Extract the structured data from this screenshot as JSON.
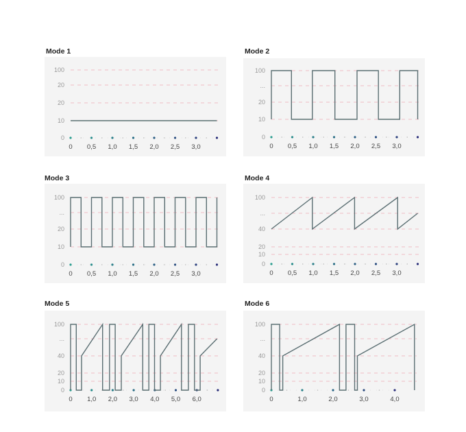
{
  "chart_data": [
    {
      "type": "line",
      "title": "Mode 1",
      "y_ticks": [
        "100",
        "20",
        "20",
        "10",
        "0"
      ],
      "x_ticks": [
        0,
        0.5,
        1.0,
        1.5,
        2.0,
        2.5,
        3.0
      ],
      "x_tick_labels": [
        "0",
        "0,5",
        "1,0",
        "1,5",
        "2,0",
        "2,5",
        "3,0"
      ],
      "marker_x": [
        0,
        0.5,
        1.0,
        1.5,
        2.0,
        2.5,
        3.0,
        3.5
      ],
      "xlim": [
        0,
        3.5
      ],
      "series": [
        {
          "points": [
            [
              0,
              "10"
            ],
            [
              3.5,
              "10"
            ]
          ]
        }
      ]
    },
    {
      "type": "line",
      "title": "Mode 2",
      "y_ticks": [
        "100",
        "...",
        "20",
        "10",
        "0"
      ],
      "x_ticks": [
        0,
        0.5,
        1.0,
        1.5,
        2.0,
        2.5,
        3.0
      ],
      "x_tick_labels": [
        "0",
        "0,5",
        "1,0",
        "1,5",
        "2,0",
        "2,5",
        "3,0"
      ],
      "marker_x": [
        0,
        0.5,
        1.0,
        1.5,
        2.0,
        2.5,
        3.0,
        3.5
      ],
      "xlim": [
        0,
        3.5
      ],
      "series": [
        {
          "points": [
            [
              0,
              "10"
            ],
            [
              0,
              "100"
            ],
            [
              0.48,
              "100"
            ],
            [
              0.48,
              "10"
            ],
            [
              0.98,
              "10"
            ],
            [
              0.98,
              "100"
            ],
            [
              1.52,
              "100"
            ],
            [
              1.52,
              "10"
            ],
            [
              2.05,
              "10"
            ],
            [
              2.05,
              "100"
            ],
            [
              2.56,
              "100"
            ],
            [
              2.56,
              "10"
            ],
            [
              3.07,
              "10"
            ],
            [
              3.07,
              "100"
            ],
            [
              3.5,
              "100"
            ],
            [
              3.5,
              "10"
            ]
          ]
        }
      ]
    },
    {
      "type": "line",
      "title": "Mode 3",
      "y_ticks": [
        "100",
        "...",
        "20",
        "10",
        "0"
      ],
      "x_ticks": [
        0,
        0.5,
        1.0,
        1.5,
        2.0,
        2.5,
        3.0
      ],
      "x_tick_labels": [
        "0",
        "0,5",
        "1,0",
        "1,5",
        "2,0",
        "2,5",
        "3,0"
      ],
      "marker_x": [
        0,
        0.5,
        1.0,
        1.5,
        2.0,
        2.5,
        3.0,
        3.5
      ],
      "xlim": [
        0,
        3.5
      ],
      "series": [
        {
          "points": [
            [
              0,
              "10"
            ],
            [
              0,
              "100"
            ],
            [
              0.25,
              "100"
            ],
            [
              0.25,
              "10"
            ],
            [
              0.5,
              "10"
            ],
            [
              0.5,
              "100"
            ],
            [
              0.75,
              "100"
            ],
            [
              0.75,
              "10"
            ],
            [
              1.0,
              "10"
            ],
            [
              1.0,
              "100"
            ],
            [
              1.25,
              "100"
            ],
            [
              1.25,
              "10"
            ],
            [
              1.5,
              "10"
            ],
            [
              1.5,
              "100"
            ],
            [
              1.75,
              "100"
            ],
            [
              1.75,
              "10"
            ],
            [
              2.0,
              "10"
            ],
            [
              2.0,
              "100"
            ],
            [
              2.25,
              "100"
            ],
            [
              2.25,
              "10"
            ],
            [
              2.5,
              "10"
            ],
            [
              2.5,
              "100"
            ],
            [
              2.75,
              "100"
            ],
            [
              2.75,
              "10"
            ],
            [
              3.0,
              "10"
            ],
            [
              3.0,
              "100"
            ],
            [
              3.25,
              "100"
            ],
            [
              3.25,
              "10"
            ],
            [
              3.5,
              "10"
            ],
            [
              3.5,
              "100"
            ]
          ]
        }
      ]
    },
    {
      "type": "line",
      "title": "Mode 4",
      "y_ticks": [
        "100",
        "...",
        "40",
        "20",
        "10",
        "0"
      ],
      "x_ticks": [
        0,
        0.5,
        1.0,
        1.5,
        2.0,
        2.5,
        3.0
      ],
      "x_tick_labels": [
        "0",
        "0,5",
        "1,0",
        "1,5",
        "2,0",
        "2,5",
        "3,0"
      ],
      "marker_x": [
        0,
        0.5,
        1.0,
        1.5,
        2.0,
        2.5,
        3.0,
        3.5
      ],
      "xlim": [
        0,
        3.5
      ],
      "series": [
        {
          "points": [
            [
              0,
              "40"
            ],
            [
              0.98,
              "100"
            ],
            [
              0.98,
              "40"
            ],
            [
              1.99,
              "100"
            ],
            [
              1.99,
              "40"
            ],
            [
              3.02,
              "100"
            ],
            [
              3.02,
              "40"
            ],
            [
              3.5,
              "..."
            ]
          ]
        }
      ]
    },
    {
      "type": "line",
      "title": "Mode 5",
      "y_ticks": [
        "100",
        "...",
        "40",
        "20",
        "10",
        "0"
      ],
      "x_ticks": [
        0,
        1.0,
        2.0,
        3.0,
        4.0,
        5.0,
        6.0
      ],
      "x_tick_labels": [
        "0",
        "1,0",
        "2,0",
        "3,0",
        "4,0",
        "5,0",
        "6,0"
      ],
      "marker_x": [
        0,
        1.0,
        2.0,
        3.0,
        4.0,
        5.0,
        6.0,
        7.0
      ],
      "xlim": [
        0,
        7.0
      ],
      "series": [
        {
          "points": [
            [
              0,
              "0"
            ],
            [
              0,
              "100"
            ],
            [
              0.27,
              "100"
            ],
            [
              0.27,
              "0"
            ],
            [
              0.52,
              "0"
            ],
            [
              0.52,
              "40"
            ],
            [
              1.52,
              "100"
            ],
            [
              1.52,
              "0"
            ],
            [
              1.85,
              "0"
            ],
            [
              1.85,
              "100"
            ],
            [
              2.12,
              "100"
            ],
            [
              2.12,
              "0"
            ],
            [
              2.41,
              "0"
            ],
            [
              2.41,
              "40"
            ],
            [
              3.43,
              "100"
            ],
            [
              3.43,
              "0"
            ],
            [
              3.72,
              "0"
            ],
            [
              3.72,
              "100"
            ],
            [
              3.99,
              "100"
            ],
            [
              3.99,
              "0"
            ],
            [
              4.27,
              "0"
            ],
            [
              4.27,
              "40"
            ],
            [
              5.27,
              "100"
            ],
            [
              5.27,
              "0"
            ],
            [
              5.6,
              "0"
            ],
            [
              5.6,
              "100"
            ],
            [
              5.89,
              "100"
            ],
            [
              5.89,
              "0"
            ],
            [
              6.16,
              "0"
            ],
            [
              6.16,
              "40"
            ],
            [
              6.96,
              "..."
            ]
          ]
        }
      ]
    },
    {
      "type": "line",
      "title": "Mode 6",
      "y_ticks": [
        "100",
        "...",
        "40",
        "20",
        "10",
        "0"
      ],
      "x_ticks": [
        0,
        1.0,
        2.0,
        3.0,
        4.0
      ],
      "x_tick_labels": [
        "0",
        "1,0",
        "2,0",
        "3,0",
        "4,0"
      ],
      "marker_x": [
        0,
        1.0,
        2.0,
        3.0,
        4.0
      ],
      "xlim": [
        0,
        4.6
      ],
      "series": [
        {
          "points": [
            [
              0,
              "0"
            ],
            [
              0,
              "100"
            ],
            [
              0.27,
              "100"
            ],
            [
              0.27,
              "0"
            ],
            [
              0.37,
              "0"
            ],
            [
              0.37,
              "40"
            ],
            [
              2.21,
              "100"
            ],
            [
              2.21,
              "0"
            ],
            [
              2.42,
              "0"
            ],
            [
              2.42,
              "100"
            ],
            [
              2.7,
              "100"
            ],
            [
              2.7,
              "0"
            ],
            [
              2.79,
              "0"
            ],
            [
              2.79,
              "40"
            ],
            [
              4.64,
              "100"
            ],
            [
              4.64,
              "0"
            ]
          ]
        }
      ]
    }
  ],
  "colors": {
    "line": "#5a6e72",
    "grid": "#f0a8b4",
    "panel": "#f4f4f4",
    "marker_start": "#2a9d8f",
    "marker_end": "#2b2f7a"
  }
}
